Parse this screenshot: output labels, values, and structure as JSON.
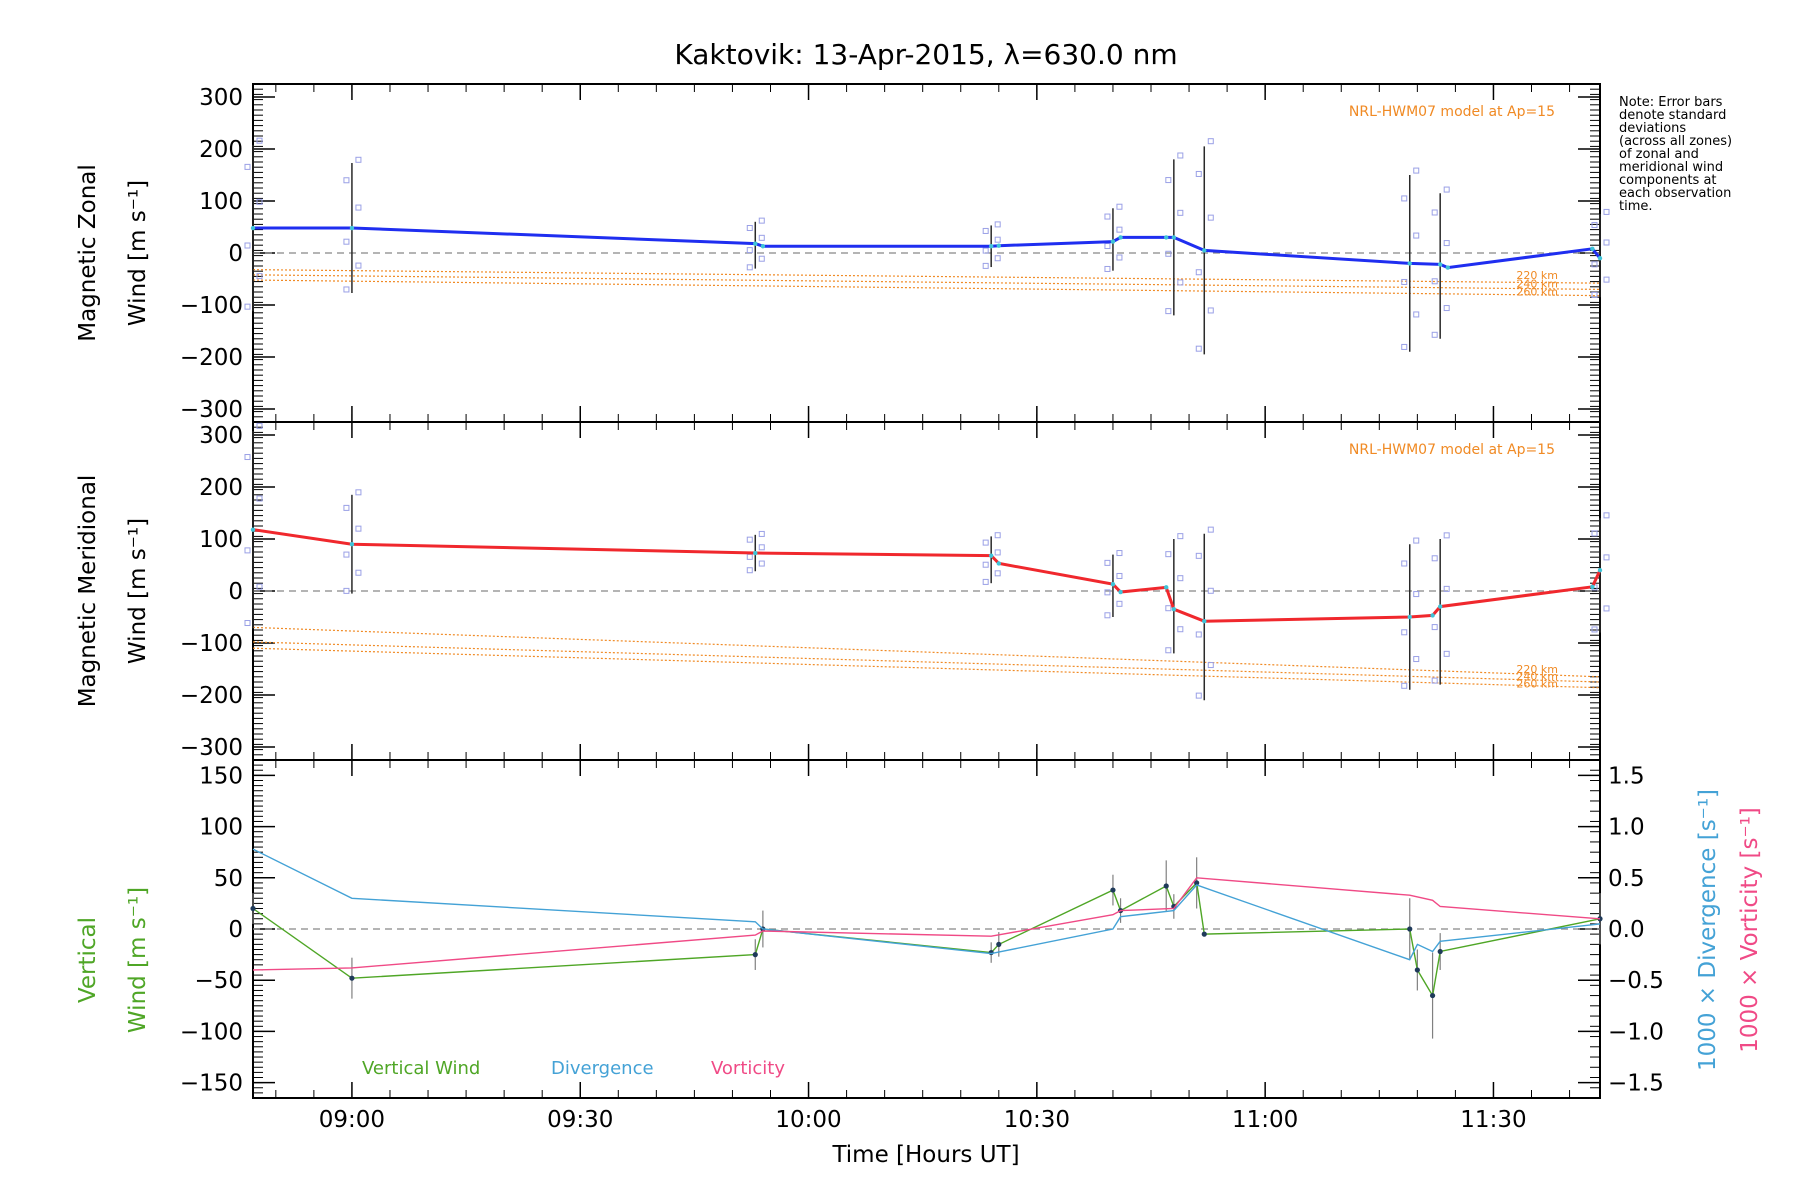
{
  "title": "Kaktovik: 13-Apr-2015, λ=630.0 nm",
  "xlabel": "Time [Hours UT]",
  "note_lines": [
    "Note: Error bars",
    "denote standard",
    "deviations",
    "(across all zones)",
    "of zonal and",
    "meridional wind",
    "components at",
    "each observation",
    "time."
  ],
  "colors": {
    "zonal": "#1f2ef0",
    "meridional": "#f0282d",
    "model": "#f08a24",
    "vertical": "#4fa626",
    "divergence": "#44a2d6",
    "vorticity": "#f04a86",
    "zero_line": "#888888",
    "marker": "#9aa0e6"
  },
  "chart_data": [
    {
      "type": "line",
      "panel": "zonal",
      "ylabel_lines": [
        "Magnetic Zonal",
        "Wind [m s⁻¹]"
      ],
      "ylim": [
        -325,
        325
      ],
      "yticks": [
        -300,
        -200,
        -100,
        0,
        100,
        200,
        300
      ],
      "xlim": [
        "08:47",
        "11:44"
      ],
      "xticks": [
        "09:00",
        "09:30",
        "10:00",
        "10:30",
        "11:00",
        "11:30"
      ],
      "model_label": "NRL-HWM07 model at Ap=15",
      "model_lines": [
        {
          "name": "220 km",
          "y": [
            -32,
            -58
          ]
        },
        {
          "name": "240 km",
          "y": [
            -42,
            -70
          ]
        },
        {
          "name": "260 km",
          "y": [
            -52,
            -82
          ]
        }
      ],
      "series": [
        {
          "name": "Zonal wind",
          "x": [
            "08:47",
            "09:00",
            "09:53",
            "09:54",
            "10:24",
            "10:25",
            "10:40",
            "10:41",
            "10:47",
            "10:48",
            "10:52",
            "11:19",
            "11:23",
            "11:24",
            "11:43",
            "11:44"
          ],
          "y": [
            48,
            48,
            18,
            13,
            13,
            14,
            22,
            30,
            30,
            30,
            5,
            -20,
            -22,
            -28,
            8,
            -10
          ]
        }
      ],
      "error_bars": [
        {
          "x": "08:47",
          "y": 48,
          "err": 160
        },
        {
          "x": "09:00",
          "y": 48,
          "err": 125
        },
        {
          "x": "09:53",
          "y": 15,
          "err": 45
        },
        {
          "x": "10:24",
          "y": 13,
          "err": 40
        },
        {
          "x": "10:40",
          "y": 26,
          "err": 60
        },
        {
          "x": "10:48",
          "y": 30,
          "err": 150
        },
        {
          "x": "10:52",
          "y": 5,
          "err": 200
        },
        {
          "x": "11:19",
          "y": -20,
          "err": 170
        },
        {
          "x": "11:23",
          "y": -25,
          "err": 140
        },
        {
          "x": "11:44",
          "y": -5,
          "err": 80
        }
      ]
    },
    {
      "type": "line",
      "panel": "meridional",
      "ylabel_lines": [
        "Magnetic Meridional",
        "Wind [m s⁻¹]"
      ],
      "ylim": [
        -325,
        325
      ],
      "yticks": [
        -300,
        -200,
        -100,
        0,
        100,
        200,
        300
      ],
      "xlim": [
        "08:47",
        "11:44"
      ],
      "xticks": [
        "09:00",
        "09:30",
        "10:00",
        "10:30",
        "11:00",
        "11:30"
      ],
      "model_label": "NRL-HWM07 model at Ap=15",
      "model_lines": [
        {
          "name": "220 km",
          "y": [
            -70,
            -165
          ]
        },
        {
          "name": "240 km",
          "y": [
            -98,
            -175
          ]
        },
        {
          "name": "260 km",
          "y": [
            -110,
            -186
          ]
        }
      ],
      "series": [
        {
          "name": "Meridional wind",
          "x": [
            "08:47",
            "09:00",
            "09:53",
            "10:24",
            "10:25",
            "10:40",
            "10:41",
            "10:47",
            "10:48",
            "10:52",
            "11:19",
            "11:22",
            "11:23",
            "11:43",
            "11:44"
          ],
          "y": [
            118,
            90,
            73,
            68,
            53,
            13,
            -2,
            7,
            -35,
            -58,
            -50,
            -47,
            -30,
            8,
            40
          ]
        }
      ],
      "error_bars": [
        {
          "x": "08:47",
          "y": 118,
          "err": 190
        },
        {
          "x": "09:00",
          "y": 90,
          "err": 95
        },
        {
          "x": "09:53",
          "y": 73,
          "err": 35
        },
        {
          "x": "10:24",
          "y": 60,
          "err": 45
        },
        {
          "x": "10:40",
          "y": 10,
          "err": 60
        },
        {
          "x": "10:48",
          "y": -10,
          "err": 110
        },
        {
          "x": "10:52",
          "y": -50,
          "err": 160
        },
        {
          "x": "11:19",
          "y": -50,
          "err": 140
        },
        {
          "x": "11:23",
          "y": -40,
          "err": 140
        },
        {
          "x": "11:44",
          "y": 30,
          "err": 110
        }
      ]
    },
    {
      "type": "line",
      "panel": "vertical",
      "ylabel_green_lines": [
        "Vertical",
        "Wind [m s⁻¹]"
      ],
      "ylim": [
        -165,
        165
      ],
      "yticks": [
        -150,
        -100,
        -50,
        0,
        50,
        100,
        150
      ],
      "y2lim": [
        -1.65,
        1.65
      ],
      "y2ticks": [
        -1.5,
        -1.0,
        -0.5,
        0.0,
        0.5,
        1.0,
        1.5
      ],
      "y2label_blue": "1000 × Divergence [s⁻¹]",
      "y2label_pink": "1000 × Vorticity [s⁻¹]",
      "xlim": [
        "08:47",
        "11:44"
      ],
      "xticks": [
        "09:00",
        "09:30",
        "10:00",
        "10:30",
        "11:00",
        "11:30"
      ],
      "series": [
        {
          "name": "Vertical Wind",
          "axis": "left",
          "x": [
            "08:47",
            "09:00",
            "09:53",
            "09:54",
            "10:24",
            "10:25",
            "10:40",
            "10:41",
            "10:47",
            "10:48",
            "10:51",
            "10:52",
            "11:19",
            "11:20",
            "11:22",
            "11:23",
            "11:44"
          ],
          "y": [
            20,
            -48,
            -25,
            0,
            -23,
            -15,
            38,
            18,
            42,
            22,
            45,
            -5,
            0,
            -40,
            -65,
            -22,
            10
          ]
        },
        {
          "name": "Divergence",
          "axis": "right",
          "x": [
            "08:47",
            "09:00",
            "09:53",
            "09:54",
            "10:24",
            "10:40",
            "10:41",
            "10:48",
            "10:51",
            "11:19",
            "11:20",
            "11:22",
            "11:23",
            "11:44"
          ],
          "y": [
            0.78,
            0.3,
            0.07,
            0.0,
            -0.24,
            0.0,
            0.12,
            0.18,
            0.43,
            -0.3,
            -0.15,
            -0.22,
            -0.12,
            0.05
          ]
        },
        {
          "name": "Vorticity",
          "axis": "right",
          "x": [
            "08:47",
            "09:00",
            "09:53",
            "09:54",
            "10:24",
            "10:40",
            "10:41",
            "10:48",
            "10:51",
            "11:19",
            "11:22",
            "11:23",
            "11:44"
          ],
          "y": [
            -0.4,
            -0.38,
            -0.06,
            -0.02,
            -0.07,
            0.14,
            0.18,
            0.2,
            0.5,
            0.33,
            0.28,
            0.22,
            0.1
          ]
        }
      ],
      "error_bars": [
        {
          "x": "08:47",
          "y": 20,
          "err": 15
        },
        {
          "x": "09:00",
          "y": -48,
          "err": 20
        },
        {
          "x": "09:53",
          "y": -25,
          "err": 15
        },
        {
          "x": "09:54",
          "y": 0,
          "err": 18
        },
        {
          "x": "10:24",
          "y": -23,
          "err": 10
        },
        {
          "x": "10:25",
          "y": -15,
          "err": 12
        },
        {
          "x": "10:40",
          "y": 38,
          "err": 15
        },
        {
          "x": "10:41",
          "y": 18,
          "err": 12
        },
        {
          "x": "10:47",
          "y": 42,
          "err": 25
        },
        {
          "x": "10:48",
          "y": 22,
          "err": 12
        },
        {
          "x": "10:51",
          "y": 45,
          "err": 25
        },
        {
          "x": "11:19",
          "y": 0,
          "err": 30
        },
        {
          "x": "11:20",
          "y": -40,
          "err": 20
        },
        {
          "x": "11:22",
          "y": -65,
          "err": 42
        },
        {
          "x": "11:23",
          "y": -22,
          "err": 18
        },
        {
          "x": "11:44",
          "y": 10,
          "err": 25
        }
      ],
      "legend": [
        "Vertical Wind",
        "Divergence",
        "Vorticity"
      ]
    }
  ]
}
